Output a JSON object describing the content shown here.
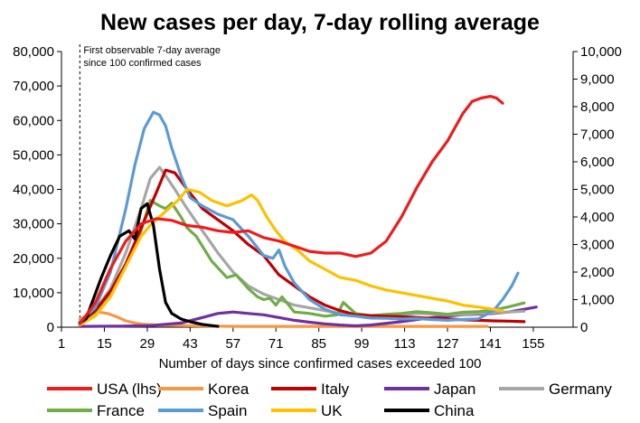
{
  "chart_data": {
    "type": "line",
    "title": "New cases per day, 7-day rolling average",
    "xlabel": "Number of days since confirmed cases exceeded 100",
    "annotation": "First observable 7-day average since 100 confirmed cases",
    "annotation_lines": [
      "First observable 7-day average",
      "since 100 confirmed cases"
    ],
    "annotation_day": 7,
    "x_ticks": [
      1,
      15,
      29,
      43,
      57,
      71,
      85,
      99,
      113,
      127,
      141,
      155
    ],
    "x_tick_labels": [
      "1",
      "15",
      "29",
      "43",
      "57",
      "71",
      "85",
      "99",
      "113",
      "127",
      "141",
      "155"
    ],
    "xlim": [
      1,
      168
    ],
    "ylim_left": [
      0,
      80000
    ],
    "ylim_right": [
      0,
      10000
    ],
    "y_ticks_left": [
      "0",
      "10,000",
      "20,000",
      "30,000",
      "40,000",
      "50,000",
      "60,000",
      "70,000",
      "80,000"
    ],
    "y_ticks_right": [
      "0",
      "1,000",
      "2,000",
      "3,000",
      "4,000",
      "5,000",
      "6,000",
      "7,000",
      "8,000",
      "9,000",
      "10,000"
    ],
    "grid": false,
    "legend_position": "bottom",
    "series": [
      {
        "name": "USA (lhs)",
        "axis": "left",
        "color": "#ee1c1c",
        "x": [
          7,
          12,
          17,
          22,
          27,
          32,
          37,
          42,
          47,
          52,
          57,
          62,
          67,
          72,
          77,
          82,
          87,
          92,
          97,
          102,
          107,
          112,
          117,
          122,
          127,
          132,
          135,
          138,
          141,
          143,
          145
        ],
        "y": [
          1000,
          7000,
          17000,
          25000,
          30000,
          31500,
          31000,
          29500,
          29000,
          28000,
          27500,
          28000,
          26000,
          25000,
          23500,
          22000,
          21500,
          21500,
          20500,
          21500,
          25000,
          32000,
          40500,
          48000,
          54000,
          62000,
          65500,
          66500,
          67000,
          66500,
          65000
        ]
      },
      {
        "name": "Korea",
        "axis": "right",
        "color": "#f79646",
        "x": [
          7,
          10,
          13,
          16,
          19,
          22,
          25,
          28,
          32,
          36,
          40,
          45,
          50,
          60,
          80,
          100,
          120,
          140
        ],
        "y": [
          300,
          450,
          550,
          500,
          380,
          230,
          150,
          100,
          80,
          70,
          60,
          50,
          40,
          30,
          30,
          30,
          30,
          30
        ]
      },
      {
        "name": "Italy",
        "axis": "right",
        "color": "#c00000",
        "x": [
          7,
          12,
          17,
          22,
          27,
          32,
          35,
          38,
          42,
          47,
          52,
          57,
          62,
          67,
          72,
          77,
          82,
          87,
          92,
          97,
          102,
          107,
          112,
          117,
          122,
          127,
          132,
          137,
          142,
          147,
          152
        ],
        "y": [
          150,
          600,
          1300,
          2300,
          3600,
          4900,
          5700,
          5600,
          5000,
          4300,
          3900,
          3500,
          3000,
          2600,
          1900,
          1500,
          1100,
          800,
          600,
          450,
          420,
          400,
          380,
          350,
          320,
          300,
          270,
          250,
          230,
          220,
          200
        ]
      },
      {
        "name": "Japan",
        "axis": "right",
        "color": "#7030a0",
        "x": [
          7,
          20,
          30,
          40,
          47,
          52,
          57,
          62,
          67,
          72,
          77,
          82,
          87,
          92,
          97,
          102,
          112,
          122,
          132,
          142,
          147,
          152,
          156
        ],
        "y": [
          30,
          40,
          60,
          150,
          350,
          500,
          550,
          500,
          450,
          350,
          250,
          180,
          120,
          80,
          50,
          80,
          200,
          350,
          450,
          500,
          550,
          650,
          730
        ]
      },
      {
        "name": "Germany",
        "axis": "right",
        "color": "#a6a6a6",
        "x": [
          7,
          12,
          17,
          22,
          27,
          30,
          33,
          35,
          38,
          42,
          47,
          52,
          57,
          62,
          67,
          72,
          77,
          82,
          87,
          92,
          97,
          102,
          107,
          112,
          117,
          122,
          127,
          132,
          137,
          142,
          147,
          152
        ],
        "y": [
          200,
          600,
          1400,
          2700,
          4300,
          5400,
          5800,
          5500,
          5000,
          4300,
          3500,
          2700,
          2000,
          1500,
          1200,
          1000,
          800,
          700,
          600,
          500,
          450,
          400,
          420,
          450,
          500,
          480,
          450,
          460,
          500,
          520,
          550,
          580
        ]
      },
      {
        "name": "France",
        "axis": "right",
        "color": "#70ad47",
        "x": [
          7,
          12,
          17,
          22,
          27,
          30,
          33,
          35,
          37,
          40,
          42,
          45,
          50,
          55,
          58,
          62,
          65,
          67,
          69,
          71,
          73,
          77,
          82,
          87,
          91,
          93,
          97,
          102,
          107,
          112,
          117,
          122,
          127,
          132,
          137,
          142,
          147,
          152
        ],
        "y": [
          150,
          550,
          1200,
          2300,
          3500,
          4600,
          4400,
          4300,
          4500,
          4000,
          3600,
          3300,
          2400,
          1800,
          1900,
          1400,
          1100,
          1000,
          1050,
          800,
          1100,
          550,
          500,
          400,
          450,
          900,
          500,
          420,
          470,
          500,
          560,
          520,
          470,
          540,
          560,
          620,
          740,
          880
        ]
      },
      {
        "name": "Spain",
        "axis": "right",
        "color": "#5b9bd5",
        "x": [
          7,
          12,
          17,
          22,
          25,
          28,
          31,
          33,
          35,
          37,
          40,
          43,
          47,
          52,
          57,
          62,
          67,
          70,
          72,
          74,
          77,
          82,
          87,
          92,
          97,
          102,
          107,
          112,
          117,
          122,
          127,
          132,
          137,
          142,
          145,
          148,
          150
        ],
        "y": [
          200,
          700,
          2000,
          4300,
          5900,
          7200,
          7800,
          7700,
          7300,
          6500,
          5500,
          4700,
          4400,
          4100,
          3900,
          3300,
          2600,
          2500,
          2800,
          2200,
          1600,
          1000,
          650,
          450,
          400,
          330,
          320,
          300,
          310,
          280,
          250,
          280,
          300,
          600,
          1000,
          1500,
          1960
        ]
      },
      {
        "name": "UK",
        "axis": "right",
        "color": "#ffc000",
        "x": [
          7,
          12,
          17,
          22,
          27,
          30,
          33,
          36,
          39,
          42,
          46,
          50,
          55,
          60,
          63,
          65,
          68,
          71,
          74,
          78,
          82,
          87,
          92,
          97,
          102,
          107,
          112,
          117,
          122,
          127,
          132,
          137,
          142,
          145
        ],
        "y": [
          80,
          400,
          1100,
          2200,
          3300,
          3700,
          4000,
          4300,
          4600,
          5000,
          4900,
          4600,
          4400,
          4600,
          4800,
          4600,
          4000,
          3500,
          3100,
          2800,
          2400,
          2100,
          1800,
          1700,
          1500,
          1350,
          1250,
          1150,
          1050,
          950,
          800,
          730,
          650,
          600
        ]
      },
      {
        "name": "China",
        "axis": "right",
        "color": "#000000",
        "x": [
          7,
          9,
          11,
          14,
          17,
          20,
          23,
          25,
          27,
          29,
          31,
          33,
          35,
          37,
          40,
          43,
          47,
          52
        ],
        "y": [
          150,
          300,
          900,
          1800,
          2600,
          3300,
          3500,
          3200,
          4300,
          4480,
          3700,
          2100,
          900,
          500,
          300,
          200,
          100,
          30
        ]
      }
    ]
  }
}
